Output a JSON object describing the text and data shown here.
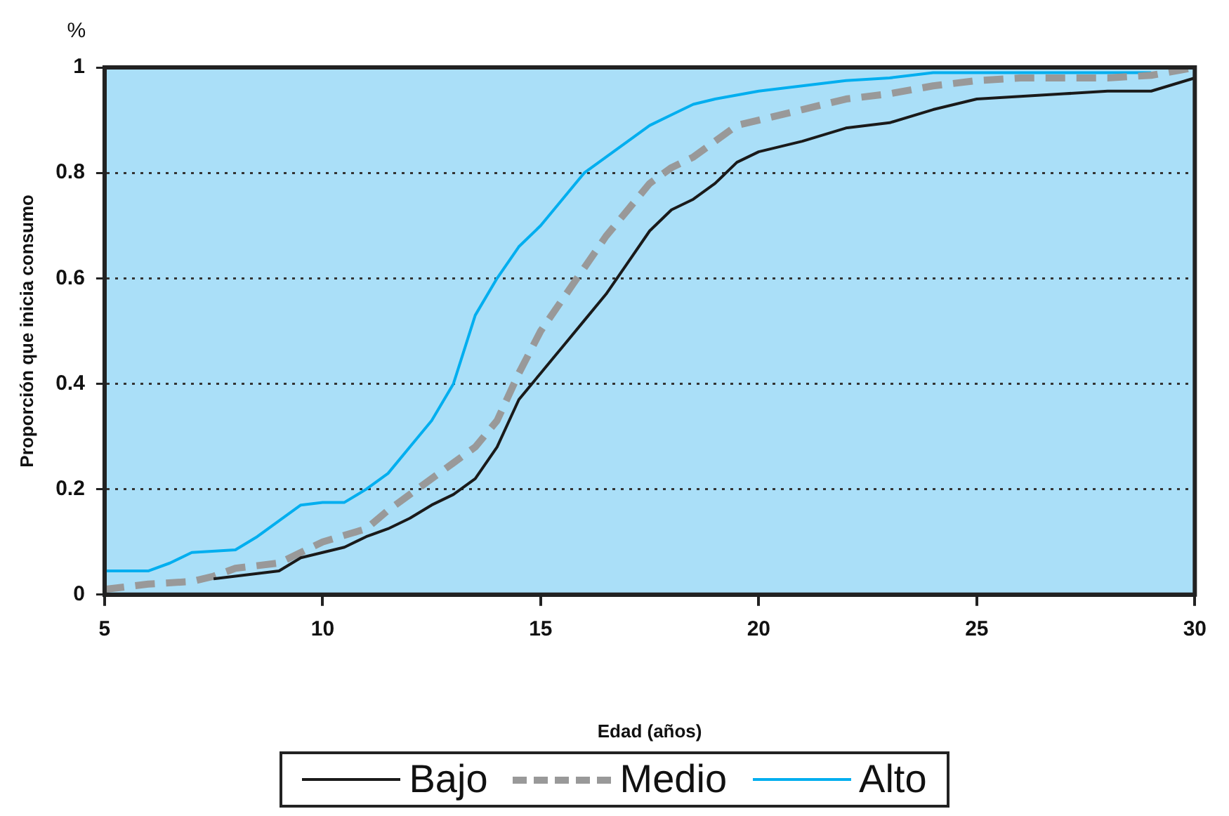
{
  "chart_data": {
    "type": "line",
    "xlabel": "Edad (años)",
    "ylabel": "Proporción que inicia consumo",
    "annotations": [
      "%"
    ],
    "xlim": [
      5,
      30
    ],
    "xticks": [
      5,
      10,
      15,
      20,
      25,
      30
    ],
    "ylim": [
      0,
      1
    ],
    "yticks": [
      0,
      0.2,
      0.4,
      0.6,
      0.8,
      1
    ],
    "grid": "y",
    "legend": "bottom",
    "marker": "none",
    "series": [
      {
        "name": "Bajo",
        "color": "#1a1a1a",
        "line_style": "solid",
        "x": [
          7.5,
          8,
          8.5,
          9,
          9.5,
          10,
          10.5,
          11,
          11.5,
          12,
          12.5,
          13,
          13.5,
          14,
          14.5,
          15,
          15.5,
          16,
          16.5,
          17,
          17.5,
          18,
          18.5,
          19,
          19.5,
          20,
          21,
          22,
          23,
          24,
          25,
          26,
          27,
          28,
          29,
          30
        ],
        "values": [
          0.03,
          0.035,
          0.04,
          0.045,
          0.07,
          0.08,
          0.09,
          0.11,
          0.125,
          0.145,
          0.17,
          0.19,
          0.22,
          0.28,
          0.37,
          0.42,
          0.47,
          0.52,
          0.57,
          0.63,
          0.69,
          0.73,
          0.75,
          0.78,
          0.82,
          0.84,
          0.86,
          0.885,
          0.895,
          0.92,
          0.94,
          0.945,
          0.95,
          0.955,
          0.955,
          0.98
        ]
      },
      {
        "name": "Medio",
        "color": "#999999",
        "line_style": "dashed",
        "x": [
          5,
          6,
          7,
          7.5,
          8,
          9,
          9.5,
          10,
          11,
          11.5,
          12,
          12.5,
          13,
          13.5,
          14,
          14.5,
          15,
          15.5,
          16,
          16.5,
          17,
          17.5,
          18,
          18.5,
          19,
          19.5,
          20,
          21,
          22,
          23,
          24,
          25,
          26,
          27,
          28,
          29,
          30
        ],
        "values": [
          0.01,
          0.02,
          0.025,
          0.035,
          0.05,
          0.06,
          0.08,
          0.1,
          0.125,
          0.16,
          0.19,
          0.22,
          0.25,
          0.28,
          0.33,
          0.42,
          0.5,
          0.56,
          0.62,
          0.68,
          0.73,
          0.78,
          0.81,
          0.83,
          0.86,
          0.89,
          0.9,
          0.92,
          0.94,
          0.95,
          0.965,
          0.975,
          0.98,
          0.98,
          0.98,
          0.985,
          1.0
        ]
      },
      {
        "name": "Alto",
        "color": "#00aeef",
        "line_style": "solid",
        "x": [
          5,
          6,
          6.5,
          7,
          8,
          8.5,
          9,
          9.5,
          10,
          10.5,
          11,
          11.5,
          12,
          12.5,
          13,
          13.5,
          14,
          14.5,
          15,
          15.5,
          16,
          16.5,
          17,
          17.5,
          18,
          18.5,
          19,
          20,
          21,
          22,
          23,
          24,
          25,
          29
        ],
        "values": [
          0.045,
          0.045,
          0.06,
          0.08,
          0.085,
          0.11,
          0.14,
          0.17,
          0.175,
          0.175,
          0.2,
          0.23,
          0.28,
          0.33,
          0.4,
          0.53,
          0.6,
          0.66,
          0.7,
          0.75,
          0.8,
          0.83,
          0.86,
          0.89,
          0.91,
          0.93,
          0.94,
          0.955,
          0.965,
          0.975,
          0.98,
          0.99,
          0.99,
          0.99
        ]
      }
    ]
  }
}
